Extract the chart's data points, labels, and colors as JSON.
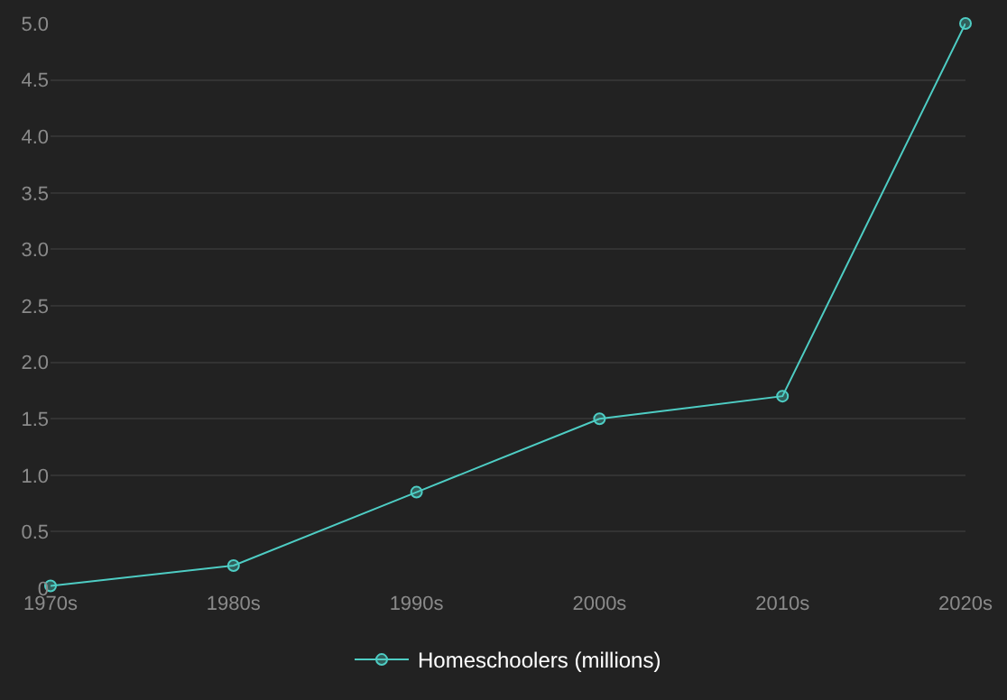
{
  "chart_data": {
    "type": "line",
    "categories": [
      "1970s",
      "1980s",
      "1990s",
      "2000s",
      "2010s",
      "2020s"
    ],
    "series": [
      {
        "name": "Homeschoolers (millions)",
        "color": "#4ecdc4",
        "values": [
          0.02,
          0.2,
          0.85,
          1.5,
          1.7,
          5.0
        ]
      }
    ],
    "ylim": [
      0,
      5
    ],
    "yticks": [
      0,
      0.5,
      {
        "value": 1,
        "label": "1.0"
      },
      1.5,
      {
        "value": 2,
        "label": "2.0"
      },
      2.5,
      {
        "value": 3,
        "label": "3.0"
      },
      3.5,
      {
        "value": 4,
        "label": "4.0"
      },
      4.5,
      {
        "value": 5,
        "label": "5.0"
      }
    ],
    "grid": "y",
    "legend": "bottom",
    "marker": "circle",
    "line_style": "solid"
  }
}
